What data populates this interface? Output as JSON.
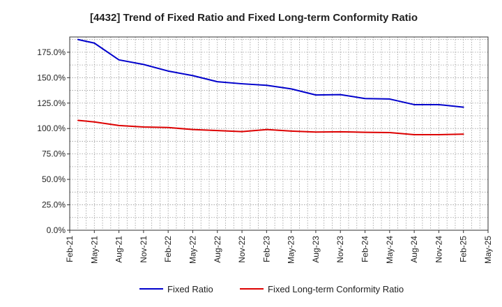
{
  "chart_data": {
    "type": "line",
    "title": "[4432]  Trend of Fixed Ratio and Fixed Long-term Conformity Ratio",
    "xlabel": "",
    "ylabel": "",
    "x_tick_labels": [
      "Feb-21",
      "May-21",
      "Aug-21",
      "Nov-21",
      "Feb-22",
      "May-22",
      "Aug-22",
      "Nov-22",
      "Feb-23",
      "May-23",
      "Aug-23",
      "Nov-23",
      "Feb-24",
      "May-24",
      "Aug-24",
      "Nov-24",
      "Feb-25",
      "May-25"
    ],
    "y_tick_labels": [
      "0.0%",
      "25.0%",
      "50.0%",
      "75.0%",
      "100.0%",
      "125.0%",
      "150.0%",
      "175.0%"
    ],
    "y_ticks": [
      0,
      25,
      50,
      75,
      100,
      125,
      150,
      175
    ],
    "ylim": [
      0,
      190
    ],
    "x": [
      "Mar-21",
      "Apr-21",
      "May-21",
      "Jun-21",
      "Jul-21",
      "Aug-21",
      "Sep-21",
      "Oct-21",
      "Nov-21",
      "Dec-21",
      "Jan-22",
      "Feb-22",
      "Mar-22",
      "Apr-22",
      "May-22",
      "Jun-22",
      "Jul-22",
      "Aug-22",
      "Sep-22",
      "Oct-22",
      "Nov-22",
      "Dec-22",
      "Jan-23",
      "Feb-23",
      "Mar-23",
      "Apr-23",
      "May-23",
      "Jun-23",
      "Jul-23",
      "Aug-23",
      "Sep-23",
      "Oct-23",
      "Nov-23",
      "Dec-23",
      "Jan-24",
      "Feb-24",
      "Mar-24",
      "Apr-24",
      "May-24",
      "Jun-24",
      "Jul-24",
      "Aug-24",
      "Sep-24",
      "Oct-24",
      "Nov-24",
      "Dec-24",
      "Jan-25",
      "Feb-25"
    ],
    "series": [
      {
        "name": "Fixed Ratio",
        "color": "#0000cc",
        "points": [
          {
            "x": "Mar-21",
            "y": 187.5
          },
          {
            "x": "May-21",
            "y": 184.0
          },
          {
            "x": "Aug-21",
            "y": 167.5
          },
          {
            "x": "Nov-21",
            "y": 163.0
          },
          {
            "x": "Feb-22",
            "y": 156.5
          },
          {
            "x": "May-22",
            "y": 152.0
          },
          {
            "x": "Aug-22",
            "y": 146.0
          },
          {
            "x": "Nov-22",
            "y": 144.0
          },
          {
            "x": "Feb-23",
            "y": 142.5
          },
          {
            "x": "May-23",
            "y": 139.0
          },
          {
            "x": "Aug-23",
            "y": 133.0
          },
          {
            "x": "Nov-23",
            "y": 133.3
          },
          {
            "x": "Feb-24",
            "y": 129.5
          },
          {
            "x": "May-24",
            "y": 129.0
          },
          {
            "x": "Aug-24",
            "y": 123.5
          },
          {
            "x": "Nov-24",
            "y": 123.5
          },
          {
            "x": "Feb-25",
            "y": 121.0
          }
        ]
      },
      {
        "name": "Fixed Long-term Conformity Ratio",
        "color": "#dd0000",
        "points": [
          {
            "x": "Mar-21",
            "y": 108.0
          },
          {
            "x": "May-21",
            "y": 106.5
          },
          {
            "x": "Aug-21",
            "y": 103.0
          },
          {
            "x": "Nov-21",
            "y": 101.5
          },
          {
            "x": "Feb-22",
            "y": 101.0
          },
          {
            "x": "May-22",
            "y": 99.0
          },
          {
            "x": "Aug-22",
            "y": 98.0
          },
          {
            "x": "Nov-22",
            "y": 97.0
          },
          {
            "x": "Feb-23",
            "y": 99.0
          },
          {
            "x": "May-23",
            "y": 97.5
          },
          {
            "x": "Aug-23",
            "y": 96.5
          },
          {
            "x": "Nov-23",
            "y": 96.8
          },
          {
            "x": "Feb-24",
            "y": 96.3
          },
          {
            "x": "May-24",
            "y": 96.0
          },
          {
            "x": "Aug-24",
            "y": 94.0
          },
          {
            "x": "Nov-24",
            "y": 94.0
          },
          {
            "x": "Feb-25",
            "y": 94.5
          }
        ]
      }
    ],
    "grid": true,
    "legend_position": "bottom"
  }
}
